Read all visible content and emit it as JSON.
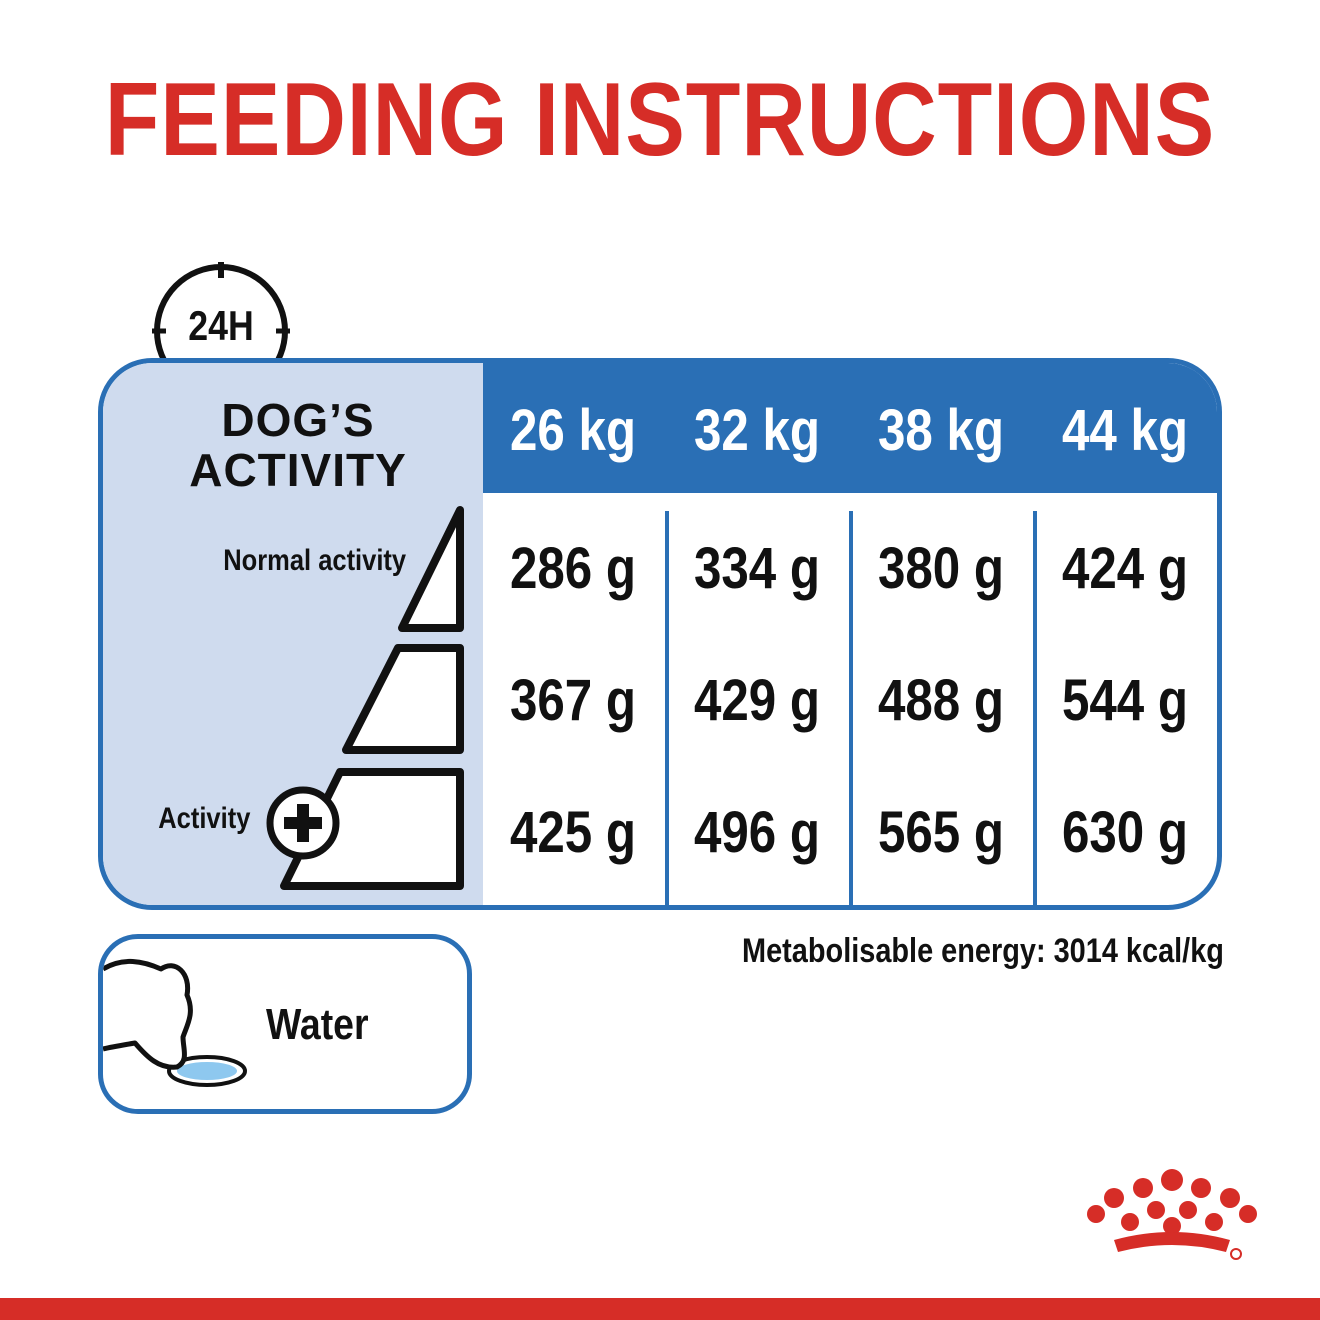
{
  "title": "FEEDING INSTRUCTIONS",
  "clock_label": "24H",
  "table": {
    "activity_heading_line1": "DOG’S",
    "activity_heading_line2": "ACTIVITY",
    "weights": [
      "26 kg",
      "32 kg",
      "38 kg",
      "44 kg"
    ],
    "rows": [
      {
        "label": "Normal activity",
        "values": [
          "286 g",
          "334 g",
          "380 g",
          "424 g"
        ]
      },
      {
        "label": "",
        "values": [
          "367 g",
          "429 g",
          "488 g",
          "544 g"
        ]
      },
      {
        "label": "Activity",
        "values": [
          "425 g",
          "496 g",
          "565 g",
          "630 g"
        ]
      }
    ]
  },
  "energy_note": "Metabolisable energy: 3014 kcal/kg",
  "water_label": "Water",
  "colors": {
    "brand_red": "#d62d27",
    "table_blue": "#2a6fb5",
    "panel_light_blue": "#cfdbee",
    "water_blue": "#8ec8ef"
  },
  "icons": [
    "clock-icon",
    "activity-ramp-icon",
    "plus-circle-icon",
    "dog-drinking-icon",
    "royal-canin-crown-logo"
  ]
}
